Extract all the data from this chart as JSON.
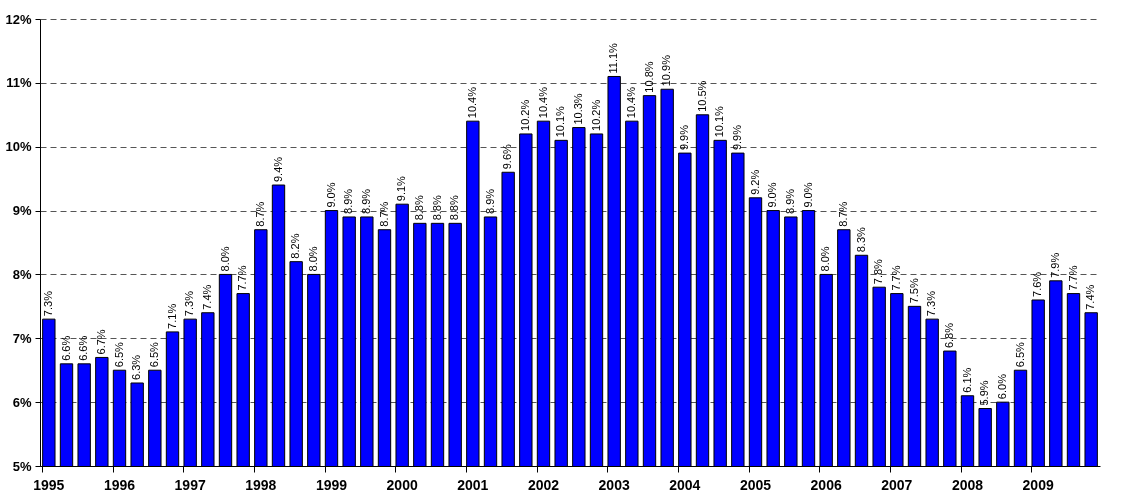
{
  "chart_data": {
    "type": "bar",
    "categories": [
      "1995",
      null,
      null,
      null,
      "1996",
      null,
      null,
      null,
      "1997",
      null,
      null,
      null,
      "1998",
      null,
      null,
      null,
      "1999",
      null,
      null,
      null,
      "2000",
      null,
      null,
      null,
      "2001",
      null,
      null,
      null,
      "2002",
      null,
      null,
      null,
      "2003",
      null,
      null,
      null,
      "2004",
      null,
      null,
      null,
      "2005",
      null,
      null,
      null,
      "2006",
      null,
      null,
      null,
      "2007",
      null,
      null,
      null,
      "2008",
      null,
      null,
      null,
      "2009",
      null,
      null,
      null
    ],
    "values": [
      7.3,
      6.6,
      6.6,
      6.7,
      6.5,
      6.3,
      6.5,
      7.1,
      7.3,
      7.4,
      8.0,
      7.7,
      8.7,
      9.4,
      8.2,
      8.0,
      9.0,
      8.9,
      8.9,
      8.7,
      9.1,
      8.8,
      8.8,
      8.8,
      10.4,
      8.9,
      9.6,
      10.2,
      10.4,
      10.1,
      10.3,
      10.2,
      11.1,
      10.4,
      10.8,
      10.9,
      9.9,
      10.5,
      10.1,
      9.9,
      9.2,
      9.0,
      8.9,
      9.0,
      8.0,
      8.7,
      8.3,
      7.8,
      7.7,
      7.5,
      7.3,
      6.8,
      6.1,
      5.9,
      6.0,
      6.5,
      7.6,
      7.9,
      7.7,
      7.4
    ],
    "value_labels": [
      "7.3%",
      "6.6%",
      "6.6%",
      "6.7%",
      "6.5%",
      "6.3%",
      "6.5%",
      "7.1%",
      "7.3%",
      "7.4%",
      "8.0%",
      "7.7%",
      "8.7%",
      "9.4%",
      "8.2%",
      "8.0%",
      "9.0%",
      "8.9%",
      "8.9%",
      "8.7%",
      "9.1%",
      "8.8%",
      "8.8%",
      "8.8%",
      "10.4%",
      "8.9%",
      "9.6%",
      "10.2%",
      "10.4%",
      "10.1%",
      "10.3%",
      "10.2%",
      "11.1%",
      "10.4%",
      "10.8%",
      "10.9%",
      "9.9%",
      "10.5%",
      "10.1%",
      "9.9%",
      "9.2%",
      "9.0%",
      "8.9%",
      "9.0%",
      "8.0%",
      "8.7%",
      "8.3%",
      "7.8%",
      "7.7%",
      "7.5%",
      "7.3%",
      "6.8%",
      "6.1%",
      "5.9%",
      "6.0%",
      "6.5%",
      "7.6%",
      "7.9%",
      "7.7%",
      "7.4%"
    ],
    "color": "#0000ff",
    "ylim": [
      5,
      12
    ],
    "yticks": [
      {
        "value": 5,
        "label": "5%"
      },
      {
        "value": 6,
        "label": "6%"
      },
      {
        "value": 7,
        "label": "7%"
      },
      {
        "value": 8,
        "label": "8%"
      },
      {
        "value": 9,
        "label": "9%"
      },
      {
        "value": 10,
        "label": "10%"
      },
      {
        "value": 11,
        "label": "11%"
      },
      {
        "value": 12,
        "label": "12%"
      }
    ],
    "grid": "y"
  }
}
